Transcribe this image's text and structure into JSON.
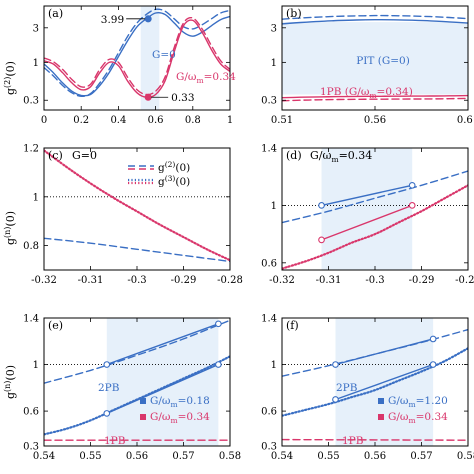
{
  "figure": {
    "y_label": "g",
    "y_label_sup2": "(2)",
    "y_label_supn": "(n)",
    "y_label_arg": "(0)"
  },
  "colors": {
    "blue": "#3a6fc4",
    "red": "#d9366b",
    "shade": "#e6f0fa",
    "dotted_black": "#555555"
  },
  "chart_data": [
    {
      "id": "a",
      "type": "line",
      "panel_label": "(a)",
      "scale_y": "log",
      "xlim": [
        0,
        1
      ],
      "ylim": [
        0.22,
        6.0
      ],
      "x_ticks": [
        0,
        0.2,
        0.4,
        0.6,
        0.8,
        1
      ],
      "x_tick_labels": [
        "0",
        "0.2",
        "0.4",
        "0.6",
        "0.8",
        "1"
      ],
      "y_ticks": [
        0.3,
        1,
        3
      ],
      "y_tick_labels": [
        "0.3",
        "1",
        "3"
      ],
      "annotations": [
        {
          "text": "3.99",
          "x": 0.56,
          "y": 3.99
        },
        {
          "text": "0.33",
          "x": 0.56,
          "y": 0.33
        },
        {
          "text": "G=0"
        },
        {
          "text": "G/ω",
          "sub": "m",
          "tail": "=0.34"
        }
      ],
      "series": [
        {
          "name": "G=0",
          "color": "blue",
          "style": "solid",
          "x": [
            0,
            0.05,
            0.1,
            0.15,
            0.2,
            0.25,
            0.3,
            0.35,
            0.4,
            0.45,
            0.5,
            0.55,
            0.6,
            0.65,
            0.7,
            0.75,
            0.8,
            0.85,
            0.9,
            0.95,
            1.0
          ],
          "y": [
            0.95,
            0.72,
            0.52,
            0.4,
            0.35,
            0.36,
            0.48,
            0.72,
            1.2,
            2.0,
            3.1,
            3.99,
            4.8,
            4.6,
            3.5,
            2.6,
            2.3,
            2.6,
            3.2,
            3.9,
            4.3
          ]
        },
        {
          "name": "G=0 dashed",
          "color": "blue",
          "style": "dashed",
          "x": [
            0,
            0.05,
            0.1,
            0.15,
            0.2,
            0.25,
            0.3,
            0.35,
            0.4,
            0.45,
            0.5,
            0.55,
            0.6,
            0.65,
            0.7,
            0.75,
            0.8,
            0.85,
            0.9,
            0.95,
            1.0
          ],
          "y": [
            0.85,
            0.65,
            0.48,
            0.38,
            0.34,
            0.37,
            0.52,
            0.8,
            1.35,
            2.3,
            3.5,
            4.6,
            5.4,
            5.1,
            4.0,
            3.1,
            2.9,
            3.3,
            4.0,
            4.8,
            5.2
          ]
        },
        {
          "name": "G/ωm=0.34",
          "color": "red",
          "style": "solid",
          "x": [
            0,
            0.05,
            0.1,
            0.15,
            0.2,
            0.25,
            0.3,
            0.35,
            0.4,
            0.45,
            0.5,
            0.55,
            0.6,
            0.65,
            0.7,
            0.75,
            0.8,
            0.85,
            0.9,
            0.95,
            1.0
          ],
          "y": [
            1.05,
            0.95,
            0.72,
            0.52,
            0.42,
            0.46,
            0.72,
            1.0,
            0.9,
            0.55,
            0.38,
            0.33,
            0.36,
            0.55,
            1.4,
            3.2,
            3.8,
            2.6,
            1.5,
            0.95,
            0.75
          ]
        },
        {
          "name": "G/ωm=0.34 dashed",
          "color": "red",
          "style": "dashed",
          "x": [
            0,
            0.05,
            0.1,
            0.15,
            0.2,
            0.25,
            0.3,
            0.35,
            0.4,
            0.45,
            0.5,
            0.55,
            0.6,
            0.65,
            0.7,
            0.75,
            0.8,
            0.85,
            0.9,
            0.95,
            1.0
          ],
          "y": [
            1.15,
            1.02,
            0.8,
            0.58,
            0.46,
            0.5,
            0.8,
            1.1,
            1.0,
            0.62,
            0.42,
            0.36,
            0.4,
            0.62,
            1.6,
            3.5,
            4.1,
            2.9,
            1.7,
            1.05,
            0.8
          ]
        }
      ],
      "markers": [
        {
          "x": 0.56,
          "y": 3.99,
          "color": "blue",
          "filled": true
        },
        {
          "x": 0.56,
          "y": 0.33,
          "color": "red",
          "filled": true
        }
      ],
      "shade": {
        "x0": 0.52,
        "x1": 0.62
      }
    },
    {
      "id": "b",
      "type": "line",
      "panel_label": "(b)",
      "scale_y": "log",
      "xlim": [
        0.51,
        0.61
      ],
      "ylim": [
        0.22,
        6.0
      ],
      "x_ticks": [
        0.51,
        0.56,
        0.61
      ],
      "x_tick_labels": [
        "0.51",
        "0.56",
        "0.61"
      ],
      "y_ticks": [
        0.3,
        1,
        3
      ],
      "y_tick_labels": [
        "0.3",
        "1",
        "3"
      ],
      "annotations": [
        {
          "text": "PIT (G=0)"
        },
        {
          "text": "1PB (G/ω",
          "sub": "m",
          "tail": "=0.34)"
        }
      ],
      "series": [
        {
          "name": "PIT solid",
          "color": "blue",
          "style": "solid",
          "x": [
            0.51,
            0.52,
            0.53,
            0.54,
            0.55,
            0.56,
            0.57,
            0.58,
            0.59,
            0.6,
            0.61
          ],
          "y": [
            3.4,
            3.55,
            3.68,
            3.78,
            3.85,
            3.88,
            3.87,
            3.82,
            3.74,
            3.62,
            3.48
          ]
        },
        {
          "name": "PIT dashed",
          "color": "blue",
          "style": "dashed",
          "x": [
            0.51,
            0.52,
            0.53,
            0.54,
            0.55,
            0.56,
            0.57,
            0.58,
            0.59,
            0.6,
            0.61
          ],
          "y": [
            3.95,
            4.1,
            4.22,
            4.32,
            4.38,
            4.42,
            4.41,
            4.36,
            4.28,
            4.16,
            4.02
          ]
        },
        {
          "name": "1PB solid",
          "color": "red",
          "style": "solid",
          "x": [
            0.51,
            0.52,
            0.53,
            0.54,
            0.55,
            0.56,
            0.57,
            0.58,
            0.59,
            0.6,
            0.61
          ],
          "y": [
            0.325,
            0.33,
            0.334,
            0.337,
            0.339,
            0.34,
            0.341,
            0.342,
            0.343,
            0.345,
            0.348
          ]
        },
        {
          "name": "1PB dashed",
          "color": "red",
          "style": "dashed",
          "x": [
            0.51,
            0.52,
            0.53,
            0.54,
            0.55,
            0.56,
            0.57,
            0.58,
            0.59,
            0.6,
            0.61
          ],
          "y": [
            0.295,
            0.3,
            0.304,
            0.307,
            0.309,
            0.31,
            0.311,
            0.312,
            0.313,
            0.315,
            0.318
          ]
        }
      ],
      "shade_between": {
        "upper": 3.6,
        "lower": 0.36
      }
    },
    {
      "id": "c",
      "type": "line",
      "panel_label": "(c)",
      "panel_title": "G=0",
      "xlim": [
        -0.32,
        -0.28
      ],
      "ylim": [
        0.7,
        1.2
      ],
      "x_ticks": [
        -0.32,
        -0.31,
        -0.3,
        -0.29,
        -0.28
      ],
      "x_tick_labels": [
        "-0.32",
        "-0.31",
        "-0.3",
        "-0.29",
        "-0.28"
      ],
      "y_ticks": [
        0.8,
        1.0,
        1.2
      ],
      "y_tick_labels": [
        "0.8",
        "1",
        "1.2"
      ],
      "reference_y": 1.0,
      "legend": [
        {
          "label": "g",
          "sup": "(2)",
          "arg": "(0)",
          "style": "dashed"
        },
        {
          "label": "g",
          "sup": "(3)",
          "arg": "(0)",
          "style": "dotted"
        }
      ],
      "series": [
        {
          "name": "g(2)(0)",
          "color": "blue",
          "style": "dashed",
          "x": [
            -0.32,
            -0.31,
            -0.3,
            -0.29,
            -0.28
          ],
          "y": [
            0.83,
            0.81,
            0.785,
            0.76,
            0.735
          ]
        },
        {
          "name": "g(3)(0)",
          "color": "red",
          "style": "dotted",
          "x": [
            -0.32,
            -0.315,
            -0.31,
            -0.305,
            -0.3,
            -0.295,
            -0.29,
            -0.285,
            -0.28
          ],
          "y": [
            1.19,
            1.12,
            1.055,
            0.995,
            0.94,
            0.885,
            0.835,
            0.785,
            0.74
          ]
        }
      ]
    },
    {
      "id": "d",
      "type": "line",
      "panel_label": "(d)",
      "panel_title_pre": "G/ω",
      "panel_title_sub": "m",
      "panel_title_post": "=0.34",
      "xlim": [
        -0.32,
        -0.28
      ],
      "ylim": [
        0.55,
        1.4
      ],
      "x_ticks": [
        -0.32,
        -0.31,
        -0.3,
        -0.29,
        -0.28
      ],
      "x_tick_labels": [
        "-0.32",
        "-0.31",
        "-0.3",
        "-0.29",
        "-0.28"
      ],
      "y_ticks": [
        0.6,
        1.0,
        1.4
      ],
      "y_tick_labels": [
        "0.6",
        "1",
        "1.4"
      ],
      "reference_y": 1.0,
      "series": [
        {
          "name": "g(2) dashed",
          "color": "blue",
          "style": "dashed",
          "x": [
            -0.32,
            -0.31,
            -0.3,
            -0.29,
            -0.28
          ],
          "y": [
            0.88,
            0.96,
            1.05,
            1.14,
            1.24
          ]
        },
        {
          "name": "g(2) solid",
          "color": "blue",
          "style": "solid",
          "x": [
            -0.3115,
            -0.292
          ],
          "y": [
            1.0,
            1.14
          ]
        },
        {
          "name": "g(3) dotted",
          "color": "red",
          "style": "dotted",
          "x": [
            -0.32,
            -0.315,
            -0.31,
            -0.305,
            -0.3,
            -0.295,
            -0.29,
            -0.285,
            -0.28
          ],
          "y": [
            0.56,
            0.61,
            0.67,
            0.74,
            0.8,
            0.88,
            0.96,
            1.05,
            1.14
          ]
        },
        {
          "name": "g(3) solid",
          "color": "red",
          "style": "solid",
          "x": [
            -0.3115,
            -0.292
          ],
          "y": [
            0.76,
            1.0
          ]
        }
      ],
      "markers": [
        {
          "x": -0.3115,
          "y": 1.0,
          "color": "blue",
          "filled": false
        },
        {
          "x": -0.292,
          "y": 1.14,
          "color": "blue",
          "filled": false
        },
        {
          "x": -0.3115,
          "y": 0.76,
          "color": "red",
          "filled": false
        },
        {
          "x": -0.292,
          "y": 1.0,
          "color": "red",
          "filled": false
        }
      ],
      "shade": {
        "x0": -0.3115,
        "x1": -0.292
      }
    },
    {
      "id": "e",
      "type": "line",
      "panel_label": "(e)",
      "xlim": [
        0.54,
        0.58
      ],
      "ylim": [
        0.3,
        1.4
      ],
      "x_ticks": [
        0.54,
        0.55,
        0.56,
        0.57,
        0.58
      ],
      "x_tick_labels": [
        "0.54",
        "0.55",
        "0.56",
        "0.57",
        "0.58"
      ],
      "y_ticks": [
        0.3,
        0.6,
        1.0,
        1.4
      ],
      "y_tick_labels": [
        "0.3",
        "0.6",
        "1",
        "1.4"
      ],
      "reference_y": 1.0,
      "annotations": [
        {
          "text": "2PB"
        },
        {
          "text": "1PB"
        }
      ],
      "legend": [
        {
          "pre": "G/ω",
          "sub": "m",
          "post": "=0.18",
          "color": "blue"
        },
        {
          "pre": "G/ω",
          "sub": "m",
          "post": "=0.34",
          "color": "red"
        }
      ],
      "series": [
        {
          "name": "blue dashed",
          "color": "blue",
          "style": "dashed",
          "x": [
            0.54,
            0.55,
            0.56,
            0.57,
            0.58
          ],
          "y": [
            0.84,
            0.95,
            1.08,
            1.22,
            1.38
          ]
        },
        {
          "name": "blue solid upper",
          "color": "blue",
          "style": "solid",
          "x": [
            0.5535,
            0.5775
          ],
          "y": [
            1.0,
            1.35
          ]
        },
        {
          "name": "blue dotted",
          "color": "blue",
          "style": "dotted",
          "x": [
            0.54,
            0.545,
            0.55,
            0.555,
            0.56,
            0.565,
            0.57,
            0.575,
            0.58
          ],
          "y": [
            0.4,
            0.45,
            0.52,
            0.61,
            0.7,
            0.79,
            0.88,
            0.97,
            1.07
          ]
        },
        {
          "name": "blue solid lower",
          "color": "blue",
          "style": "solid",
          "x": [
            0.5535,
            0.5775
          ],
          "y": [
            0.58,
            1.0
          ]
        },
        {
          "name": "red dashed 1PB",
          "color": "red",
          "style": "dashed",
          "x": [
            0.54,
            0.58
          ],
          "y": [
            0.35,
            0.35
          ]
        }
      ],
      "markers": [
        {
          "x": 0.5535,
          "y": 1.0,
          "color": "blue",
          "filled": false
        },
        {
          "x": 0.5775,
          "y": 1.35,
          "color": "blue",
          "filled": false
        },
        {
          "x": 0.5535,
          "y": 0.58,
          "color": "blue",
          "filled": false
        },
        {
          "x": 0.5775,
          "y": 1.0,
          "color": "blue",
          "filled": false
        }
      ],
      "shade": {
        "x0": 0.5535,
        "x1": 0.5775
      }
    },
    {
      "id": "f",
      "type": "line",
      "panel_label": "(f)",
      "xlim": [
        0.54,
        0.58
      ],
      "ylim": [
        0.3,
        1.4
      ],
      "x_ticks": [
        0.54,
        0.55,
        0.56,
        0.57,
        0.58
      ],
      "x_tick_labels": [
        "0.54",
        "0.55",
        "0.56",
        "0.57",
        "0.58"
      ],
      "y_ticks": [
        0.3,
        0.6,
        1.0,
        1.4
      ],
      "y_tick_labels": [
        "0.3",
        "0.6",
        "1",
        "1.4"
      ],
      "reference_y": 1.0,
      "annotations": [
        {
          "text": "2PB"
        },
        {
          "text": "1PB"
        }
      ],
      "legend": [
        {
          "pre": "G/ω",
          "sub": "m",
          "post": "=1.20",
          "color": "blue"
        },
        {
          "pre": "G/ω",
          "sub": "m",
          "post": "=0.34",
          "color": "red"
        }
      ],
      "series": [
        {
          "name": "blue dashed",
          "color": "blue",
          "style": "dashed",
          "x": [
            0.54,
            0.55,
            0.56,
            0.57,
            0.58
          ],
          "y": [
            0.9,
            0.99,
            1.09,
            1.19,
            1.3
          ]
        },
        {
          "name": "blue solid upper",
          "color": "blue",
          "style": "solid",
          "x": [
            0.5515,
            0.5725
          ],
          "y": [
            1.0,
            1.22
          ]
        },
        {
          "name": "blue dotted",
          "color": "blue",
          "style": "dotted",
          "x": [
            0.54,
            0.545,
            0.55,
            0.555,
            0.56,
            0.565,
            0.57,
            0.575,
            0.58
          ],
          "y": [
            0.56,
            0.61,
            0.66,
            0.72,
            0.78,
            0.86,
            0.94,
            1.03,
            1.14
          ]
        },
        {
          "name": "blue solid lower",
          "color": "blue",
          "style": "solid",
          "x": [
            0.5515,
            0.5725
          ],
          "y": [
            0.7,
            1.0
          ]
        },
        {
          "name": "red dashed 1PB",
          "color": "red",
          "style": "dashed",
          "x": [
            0.54,
            0.58
          ],
          "y": [
            0.355,
            0.35
          ]
        }
      ],
      "markers": [
        {
          "x": 0.5515,
          "y": 1.0,
          "color": "blue",
          "filled": false
        },
        {
          "x": 0.5725,
          "y": 1.22,
          "color": "blue",
          "filled": false
        },
        {
          "x": 0.5515,
          "y": 0.7,
          "color": "blue",
          "filled": false
        },
        {
          "x": 0.5725,
          "y": 1.0,
          "color": "blue",
          "filled": false
        }
      ],
      "shade": {
        "x0": 0.5515,
        "x1": 0.5725
      }
    }
  ]
}
